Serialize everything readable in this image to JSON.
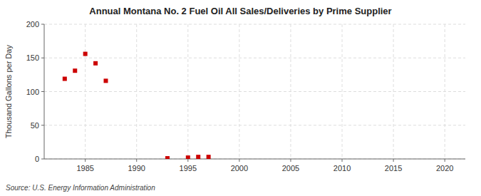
{
  "chart_data": {
    "type": "scatter",
    "title": "Annual Montana No. 2 Fuel Oil All Sales/Deliveries by Prime Supplier",
    "ylabel": "Thousand Gallons per Day",
    "source": "Source: U.S. Energy Information Administration",
    "x": [
      1983,
      1984,
      1985,
      1986,
      1987,
      1993,
      1995,
      1996,
      1997
    ],
    "values": [
      119,
      131,
      156,
      142,
      116,
      1,
      2,
      3,
      3
    ],
    "color": "#cc0000",
    "marker": "square",
    "xlim": [
      1981,
      2022
    ],
    "ylim": [
      0,
      200
    ],
    "xticks": [
      1985,
      1990,
      1995,
      2000,
      2005,
      2010,
      2015,
      2020
    ],
    "yticks": [
      0,
      50,
      100,
      150,
      200
    ],
    "grid": true
  }
}
